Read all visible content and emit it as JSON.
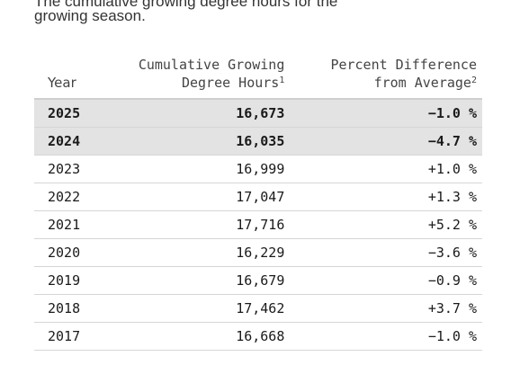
{
  "intro": {
    "line1": "The cumulative growing degree hours for the",
    "line2": "growing season."
  },
  "table": {
    "headers": {
      "year": "Year",
      "gdh_line1": "Cumulative Growing",
      "gdh_line2": "Degree Hours",
      "gdh_note": "1",
      "pct_line1": "Percent Difference",
      "pct_line2": "from Average",
      "pct_note": "2"
    },
    "rows": [
      {
        "year": "2025",
        "gdh": "16,673",
        "pct": "−1.0 %",
        "highlight": true
      },
      {
        "year": "2024",
        "gdh": "16,035",
        "pct": "−4.7 %",
        "highlight": true
      },
      {
        "year": "2023",
        "gdh": "16,999",
        "pct": "+1.0 %",
        "highlight": false
      },
      {
        "year": "2022",
        "gdh": "17,047",
        "pct": "+1.3 %",
        "highlight": false
      },
      {
        "year": "2021",
        "gdh": "17,716",
        "pct": "+5.2 %",
        "highlight": false
      },
      {
        "year": "2020",
        "gdh": "16,229",
        "pct": "−3.6 %",
        "highlight": false
      },
      {
        "year": "2019",
        "gdh": "16,679",
        "pct": "−0.9 %",
        "highlight": false
      },
      {
        "year": "2018",
        "gdh": "17,462",
        "pct": "+3.7 %",
        "highlight": false
      },
      {
        "year": "2017",
        "gdh": "16,668",
        "pct": "−1.0 %",
        "highlight": false
      }
    ]
  },
  "colors": {
    "highlight_row": "#e3e3e3",
    "divider": "#d6d6d6"
  }
}
